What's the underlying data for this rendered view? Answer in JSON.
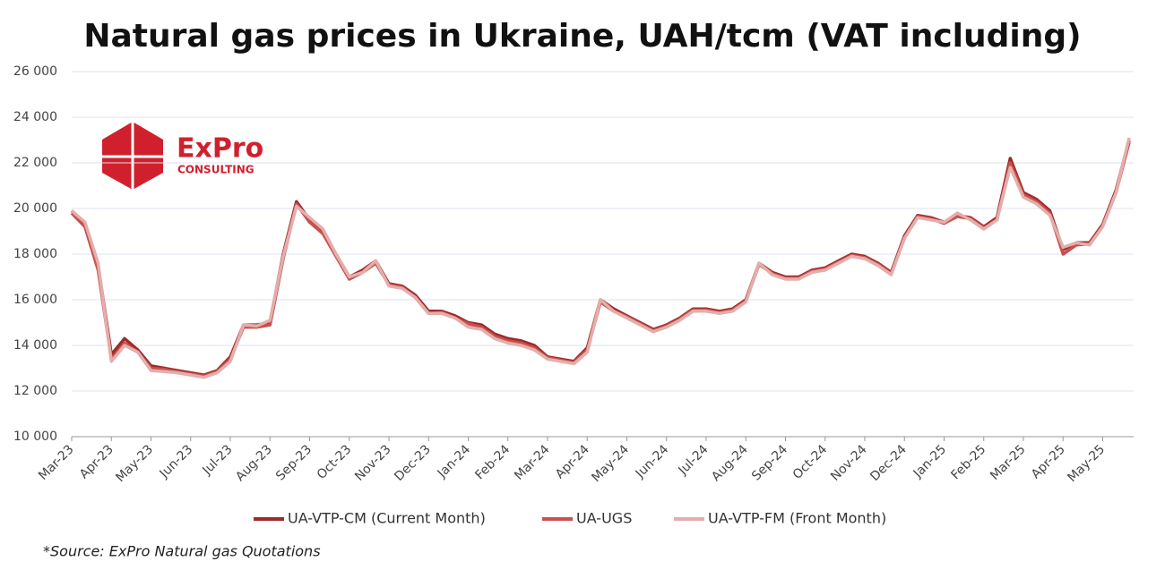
{
  "chart_data": {
    "type": "line",
    "title": "Natural gas prices in Ukraine, UAH/tcm (VAT including)",
    "logo": {
      "name": "ExPro",
      "subtitle": "CONSULTING"
    },
    "source": "*Source: ExPro Natural gas Quotations",
    "categories": [
      "Mar-23",
      null,
      null,
      "Apr-23",
      null,
      null,
      "May-23",
      null,
      null,
      "Jun-23",
      null,
      null,
      "Jul-23",
      null,
      null,
      "Aug-23",
      null,
      null,
      "Sep-23",
      null,
      null,
      "Oct-23",
      null,
      null,
      "Nov-23",
      null,
      null,
      "Dec-23",
      null,
      null,
      "Jan-24",
      null,
      null,
      "Feb-24",
      null,
      null,
      "Mar-24",
      null,
      null,
      "Apr-24",
      null,
      null,
      "May-24",
      null,
      null,
      "Jun-24",
      null,
      null,
      "Jul-24",
      null,
      null,
      "Aug-24",
      null,
      null,
      "Sep-24",
      null,
      null,
      "Oct-24",
      null,
      null,
      "Nov-24",
      null,
      null,
      "Dec-24",
      null,
      null,
      "Jan-25",
      null,
      null,
      "Feb-25",
      null,
      null,
      "Mar-25",
      null,
      null,
      "Apr-25",
      null,
      null,
      "May-25",
      null,
      null
    ],
    "series": [
      {
        "name": "UA-VTP-CM (Current Month)",
        "color": "#9c2b2b",
        "values": [
          19900,
          19300,
          17500,
          13600,
          14300,
          13800,
          13100,
          13000,
          12900,
          12800,
          12700,
          12900,
          13500,
          14900,
          14900,
          15000,
          18000,
          20300,
          19500,
          19000,
          18000,
          17000,
          17300,
          17700,
          16700,
          16600,
          16200,
          15500,
          15500,
          15300,
          15000,
          14900,
          14500,
          14300,
          14200,
          14000,
          13500,
          13400,
          13300,
          13900,
          16000,
          15600,
          15300,
          15000,
          14700,
          14900,
          15200,
          15600,
          15600,
          15500,
          15600,
          16000,
          17600,
          17200,
          17000,
          17000,
          17300,
          17400,
          17700,
          18000,
          17900,
          17600,
          17200,
          18800,
          19700,
          19600,
          19400,
          19700,
          19600,
          19200,
          19600,
          22200,
          20700,
          20400,
          19900,
          18200,
          18500,
          18500,
          19300,
          20800,
          23000
        ]
      },
      {
        "name": "UA-UGS",
        "color": "#c9504d",
        "values": [
          19800,
          19200,
          17300,
          13400,
          14100,
          13700,
          13000,
          12950,
          12850,
          12750,
          12650,
          12850,
          13400,
          14800,
          14800,
          14900,
          17800,
          20200,
          19400,
          18900,
          17900,
          16900,
          17200,
          17600,
          16650,
          16550,
          16100,
          15400,
          15450,
          15200,
          14950,
          14800,
          14400,
          14200,
          14100,
          13900,
          13450,
          13350,
          13250,
          13800,
          15900,
          15500,
          15250,
          14950,
          14650,
          14850,
          15150,
          15550,
          15550,
          15450,
          15550,
          15950,
          17550,
          17150,
          16950,
          16950,
          17250,
          17350,
          17650,
          17950,
          17850,
          17550,
          17150,
          18700,
          19650,
          19550,
          19350,
          19650,
          19550,
          19150,
          19500,
          22000,
          20600,
          20300,
          19800,
          18000,
          18400,
          18450,
          19250,
          20700,
          22900
        ]
      },
      {
        "name": "UA-VTP-FM (Front Month)",
        "color": "#e3aeac",
        "values": [
          19900,
          19400,
          17600,
          13300,
          14000,
          13700,
          12900,
          12850,
          12800,
          12700,
          12600,
          12800,
          13300,
          14900,
          14850,
          15100,
          17900,
          20100,
          19600,
          19100,
          18000,
          17000,
          17200,
          17700,
          16600,
          16500,
          16100,
          15400,
          15400,
          15200,
          14800,
          14700,
          14300,
          14100,
          14000,
          13800,
          13400,
          13300,
          13200,
          13700,
          16000,
          15500,
          15200,
          14900,
          14600,
          14800,
          15100,
          15500,
          15500,
          15400,
          15500,
          15900,
          17600,
          17100,
          16900,
          16900,
          17200,
          17300,
          17600,
          17900,
          17800,
          17500,
          17100,
          18700,
          19600,
          19500,
          19400,
          19800,
          19500,
          19100,
          19500,
          21800,
          20500,
          20200,
          19700,
          18300,
          18500,
          18400,
          19200,
          20700,
          23100
        ]
      }
    ],
    "ylim": [
      10000,
      26000
    ],
    "yticks": [
      {
        "value": 10000,
        "label": "10 000"
      },
      {
        "value": 12000,
        "label": "12 000"
      },
      {
        "value": 14000,
        "label": "14 000"
      },
      {
        "value": 16000,
        "label": "16 000"
      },
      {
        "value": 18000,
        "label": "18 000"
      },
      {
        "value": 20000,
        "label": "20 000"
      },
      {
        "value": 22000,
        "label": "22 000"
      },
      {
        "value": 24000,
        "label": "24 000"
      },
      {
        "value": 26000,
        "label": "26 000"
      }
    ],
    "grid": true,
    "legend": "bottom"
  }
}
